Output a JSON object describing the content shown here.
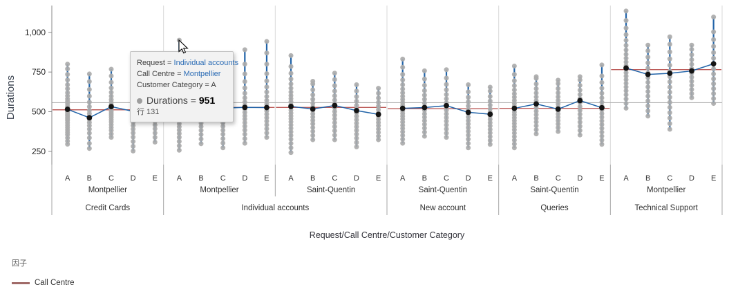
{
  "tooltip": {
    "lines": [
      {
        "label": "Request = ",
        "value": "Individual accounts",
        "value_color": "#2b6cb5"
      },
      {
        "label": "Call Centre = ",
        "value": "Montpellier",
        "value_color": "#2b6cb5"
      },
      {
        "label": "Customer Category = ",
        "value": "A",
        "value_color": "#3d3d3d"
      }
    ],
    "measure_label": "Durations = ",
    "measure_value": "951",
    "bullet_color": "#9e9e9e",
    "row_label": "行 131"
  },
  "legend": {
    "title": "因子",
    "items": [
      {
        "label": "Call Centre",
        "color": "#a06a68"
      }
    ]
  },
  "chart_data": {
    "type": "scatter",
    "subtype": "variability-chart",
    "title": "",
    "xlabel": "Request/Call Centre/Customer Category",
    "ylabel": "Durations",
    "y_ticks": [
      {
        "label": "250",
        "value": 250
      },
      {
        "label": "500",
        "value": 500
      },
      {
        "label": "750",
        "value": 750
      },
      {
        "label": "1,000",
        "value": 1000
      }
    ],
    "ylim": [
      150,
      1180
    ],
    "grand_mean": 557,
    "legend_position": "bottom-left",
    "highlight": {
      "panel_index": 1,
      "category": "A",
      "value": 951
    },
    "colors": {
      "point": "#ababab",
      "mean_point": "#141414",
      "range_line": "#2163a8",
      "mean_line": "#2163a8",
      "factor_line": "#bd5c5a",
      "grand_mean_line": "#b3b3b3",
      "panel_separator": "#d9d9d9",
      "band_separator": "#a6a6a6",
      "axis": "#8a8a8a",
      "tick_text": "#252525",
      "category_text": "#333333",
      "group_text": "#303030"
    },
    "panels": [
      {
        "request": "Credit Cards",
        "call_centre": "Montpellier",
        "factor_mean": 512,
        "cells": [
          {
            "category": "A",
            "mean": 515,
            "points": [
              295,
              315,
              335,
              355,
              370,
              385,
              400,
              415,
              430,
              445,
              455,
              465,
              475,
              485,
              495,
              505,
              515,
              525,
              535,
              550,
              565,
              580,
              600,
              620,
              645,
              670,
              700,
              735,
              770,
              800
            ]
          },
          {
            "category": "B",
            "mean": 462,
            "points": [
              268,
              300,
              335,
              365,
              390,
              412,
              432,
              452,
              470,
              488,
              508,
              532,
              560,
              598,
              640,
              690,
              738
            ]
          },
          {
            "category": "C",
            "mean": 532,
            "points": [
              338,
              360,
              382,
              400,
              418,
              435,
              450,
              465,
              478,
              490,
              502,
              515,
              528,
              542,
              558,
              576,
              598,
              622,
              650,
              685,
              725,
              768
            ]
          },
          {
            "category": "D",
            "mean": 502,
            "points": [
              252,
              282,
              312,
              340,
              366,
              390,
              412,
              434,
              455,
              475,
              495,
              515,
              538,
              562,
              590,
              622,
              660,
              700
            ]
          },
          {
            "category": "E",
            "mean": 512,
            "points": [
              308,
              338,
              366,
              392,
              416,
              438,
              458,
              478,
              497,
              516,
              536,
              558,
              582,
              610,
              645,
              688
            ]
          }
        ]
      },
      {
        "request": "Individual accounts",
        "call_centre": "Montpellier",
        "factor_mean": 527,
        "cells": [
          {
            "category": "A",
            "mean": 520,
            "points": [
              257,
              285,
              312,
              338,
              362,
              384,
              405,
              424,
              442,
              460,
              476,
              492,
              508,
              524,
              540,
              557,
              575,
              595,
              618,
              643,
              672,
              706,
              748,
              800,
              870,
              951
            ]
          },
          {
            "category": "B",
            "mean": 514,
            "points": [
              298,
              328,
              356,
              382,
              406,
              428,
              450,
              470,
              490,
              510,
              532,
              556,
              584,
              618,
              660,
              712
            ]
          },
          {
            "category": "C",
            "mean": 523,
            "points": [
              272,
              302,
              330,
              358,
              383,
              407,
              430,
              452,
              473,
              494,
              515,
              537,
              561,
              588,
              620,
              658,
              705,
              758
            ]
          },
          {
            "category": "D",
            "mean": 527,
            "points": [
              301,
              330,
              358,
              384,
              408,
              431,
              453,
              474,
              495,
              516,
              538,
              561,
              587,
              616,
              650,
              690,
              738,
              800,
              891
            ]
          },
          {
            "category": "E",
            "mean": 526,
            "points": [
              338,
              366,
              392,
              417,
              440,
              462,
              484,
              505,
              526,
              548,
              571,
              596,
              624,
              656,
              694,
              740,
              800,
              870,
              943
            ]
          }
        ]
      },
      {
        "request": "Individual accounts",
        "call_centre": "Saint-Quentin",
        "factor_mean": 527,
        "cells": [
          {
            "category": "A",
            "mean": 533,
            "points": [
              242,
              272,
              300,
              326,
              350,
              373,
              395,
              416,
              436,
              455,
              473,
              491,
              509,
              527,
              545,
              563,
              582,
              602,
              624,
              648,
              675,
              706,
              742,
              785,
              854
            ]
          },
          {
            "category": "B",
            "mean": 517,
            "points": [
              323,
              350,
              376,
              400,
              423,
              445,
              466,
              487,
              508,
              530,
              553,
              578,
              606,
              638,
              675,
              692
            ]
          },
          {
            "category": "C",
            "mean": 539,
            "points": [
              323,
              352,
              380,
              406,
              431,
              455,
              478,
              501,
              524,
              548,
              573,
              600,
              630,
              664,
              703,
              743
            ]
          },
          {
            "category": "D",
            "mean": 507,
            "points": [
              278,
              306,
              333,
              358,
              382,
              405,
              427,
              449,
              471,
              493,
              516,
              540,
              566,
              595,
              630,
              670
            ]
          },
          {
            "category": "E",
            "mean": 483,
            "points": [
              323,
              346,
              369,
              391,
              412,
              432,
              452,
              472,
              492,
              513,
              535,
              559,
              586,
              616,
              648
            ]
          }
        ]
      },
      {
        "request": "New account",
        "call_centre": "Saint-Quentin",
        "factor_mean": 519,
        "cells": [
          {
            "category": "A",
            "mean": 521,
            "points": [
              301,
              326,
              350,
              373,
              394,
              414,
              434,
              453,
              471,
              489,
              506,
              523,
              540,
              558,
              577,
              597,
              619,
              643,
              670,
              700,
              735,
              780,
              832
            ]
          },
          {
            "category": "B",
            "mean": 526,
            "points": [
              345,
              371,
              396,
              420,
              443,
              465,
              487,
              509,
              531,
              554,
              578,
              604,
              633,
              666,
              706,
              758
            ]
          },
          {
            "category": "C",
            "mean": 538,
            "points": [
              338,
              365,
              391,
              416,
              440,
              463,
              486,
              509,
              532,
              556,
              581,
              608,
              638,
              672,
              712,
              765
            ]
          },
          {
            "category": "D",
            "mean": 496,
            "points": [
              272,
              300,
              327,
              352,
              376,
              399,
              422,
              444,
              466,
              489,
              512,
              536,
              562,
              591,
              625,
              670
            ]
          },
          {
            "category": "E",
            "mean": 484,
            "points": [
              294,
              319,
              343,
              366,
              388,
              410,
              431,
              452,
              473,
              495,
              517,
              541,
              567,
              596,
              630,
              655
            ]
          }
        ]
      },
      {
        "request": "Queries",
        "call_centre": "Saint-Quentin",
        "factor_mean": 521,
        "cells": [
          {
            "category": "A",
            "mean": 521,
            "points": [
              272,
              296,
              320,
              343,
              365,
              386,
              406,
              425,
              444,
              462,
              480,
              498,
              516,
              534,
              552,
              571,
              591,
              613,
              637,
              664,
              695,
              735,
              788
            ]
          },
          {
            "category": "B",
            "mean": 549,
            "points": [
              360,
              386,
              411,
              435,
              458,
              481,
              503,
              525,
              547,
              570,
              593,
              618,
              645,
              675,
              710,
              721
            ]
          },
          {
            "category": "C",
            "mean": 516,
            "points": [
              375,
              399,
              422,
              444,
              465,
              486,
              507,
              528,
              549,
              571,
              594,
              619,
              646,
              677,
              699
            ]
          },
          {
            "category": "D",
            "mean": 570,
            "points": [
              353,
              381,
              408,
              434,
              459,
              484,
              508,
              532,
              557,
              582,
              608,
              636,
              666,
              700,
              721
            ]
          },
          {
            "category": "E",
            "mean": 525,
            "points": [
              294,
              320,
              346,
              371,
              395,
              419,
              442,
              465,
              488,
              511,
              535,
              560,
              587,
              616,
              648,
              684,
              725,
              795
            ]
          }
        ]
      },
      {
        "request": "Technical Support",
        "call_centre": "Montpellier",
        "factor_mean": 765,
        "cells": [
          {
            "category": "A",
            "mean": 775,
            "points": [
              522,
              552,
              580,
              607,
              632,
              656,
              679,
              702,
              724,
              746,
              768,
              790,
              813,
              837,
              862,
              889,
              918,
              950,
              986,
              1027,
              1075,
              1135
            ]
          },
          {
            "category": "B",
            "mean": 735,
            "points": [
              472,
              505,
              537,
              568,
              598,
              627,
              656,
              685,
              714,
              744,
              775,
              808,
              844,
              884,
              920
            ]
          },
          {
            "category": "C",
            "mean": 742,
            "points": [
              389,
              425,
              460,
              494,
              527,
              559,
              591,
              623,
              655,
              688,
              721,
              756,
              793,
              833,
              877,
              925,
              972
            ]
          },
          {
            "category": "D",
            "mean": 757,
            "points": [
              588,
              614,
              640,
              666,
              692,
              718,
              744,
              771,
              799,
              828,
              859,
              893,
              920
            ]
          },
          {
            "category": "E",
            "mean": 802,
            "points": [
              552,
              583,
              614,
              645,
              676,
              707,
              738,
              770,
              803,
              837,
              873,
              912,
              955,
              1003,
              1097
            ]
          }
        ]
      }
    ]
  }
}
